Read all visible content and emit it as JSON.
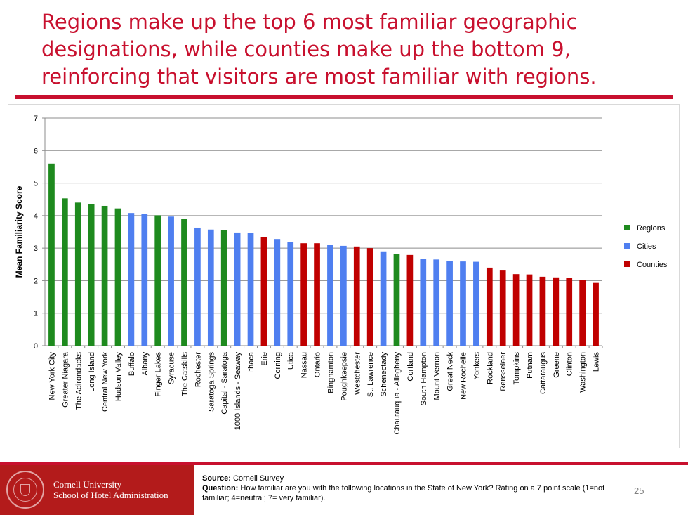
{
  "slide": {
    "title": "Regions make up the top 6 most familiar geographic designations, while counties make up the bottom 9, reinforcing that visitors are most familiar with regions.",
    "page_number": "25"
  },
  "footer": {
    "brand_line1": "Cornell University",
    "brand_line2": "School of Hotel Administration",
    "source_label": "Source:",
    "source_text": " Cornell Survey",
    "question_label": "Question:",
    "question_text": " How familiar are you with the following locations in the State of New York? Rating on a 7 point scale (1=not familiar; 4=neutral; 7= very familiar)."
  },
  "colors": {
    "Regions": "#1e8a1e",
    "Cities": "#4f7ff0",
    "Counties": "#c00000",
    "title_red": "#c8102e"
  },
  "chart_data": {
    "type": "bar",
    "title": "",
    "xlabel": "",
    "ylabel": "Mean Familiarity Score",
    "ylim": [
      0,
      7
    ],
    "yticks": [
      "0",
      "1",
      "2",
      "3",
      "4",
      "5",
      "6",
      "7"
    ],
    "grid": true,
    "legend_position": "right",
    "legend": [
      "Regions",
      "Cities",
      "Counties"
    ],
    "categories": [
      "New York City",
      "Greater Niagara",
      "The Adirondacks",
      "Long Island",
      "Central New York",
      "Hudson Valley",
      "Buffalo",
      "Albany",
      "Finger Lakes",
      "Syracuse",
      "The Catskills",
      "Rochester",
      "Saratoga Springs",
      "Capital - Saratoga",
      "1000 Islands - Seaway",
      "Ithaca",
      "Erie",
      "Corning",
      "Utica",
      "Nassau",
      "Ontario",
      "Binghamton",
      "Poughkeepsie",
      "Westchester",
      "St. Lawrence",
      "Schenectady",
      "Chautauqua - Allegheny",
      "Cortland",
      "South Hampton",
      "Mount Vernon",
      "Great Neck",
      "New Rochelle",
      "Yonkers",
      "Rockland",
      "Rensselaer",
      "Tompkins",
      "Putnam",
      "Cattaraugus",
      "Greene",
      "Clinton",
      "Washington",
      "Lewis"
    ],
    "values": [
      5.6,
      4.53,
      4.4,
      4.36,
      4.3,
      4.22,
      4.08,
      4.05,
      4.01,
      3.97,
      3.91,
      3.63,
      3.57,
      3.56,
      3.48,
      3.46,
      3.33,
      3.28,
      3.18,
      3.15,
      3.15,
      3.1,
      3.07,
      3.05,
      3.0,
      2.9,
      2.83,
      2.79,
      2.66,
      2.65,
      2.6,
      2.59,
      2.58,
      2.4,
      2.31,
      2.2,
      2.19,
      2.12,
      2.1,
      2.08,
      2.03,
      1.93
    ],
    "groups": [
      "Regions",
      "Regions",
      "Regions",
      "Regions",
      "Regions",
      "Regions",
      "Cities",
      "Cities",
      "Regions",
      "Cities",
      "Regions",
      "Cities",
      "Cities",
      "Regions",
      "Cities",
      "Cities",
      "Counties",
      "Cities",
      "Cities",
      "Counties",
      "Counties",
      "Cities",
      "Cities",
      "Counties",
      "Counties",
      "Cities",
      "Regions",
      "Counties",
      "Cities",
      "Cities",
      "Cities",
      "Cities",
      "Cities",
      "Counties",
      "Counties",
      "Counties",
      "Counties",
      "Counties",
      "Counties",
      "Counties",
      "Counties",
      "Counties"
    ]
  }
}
